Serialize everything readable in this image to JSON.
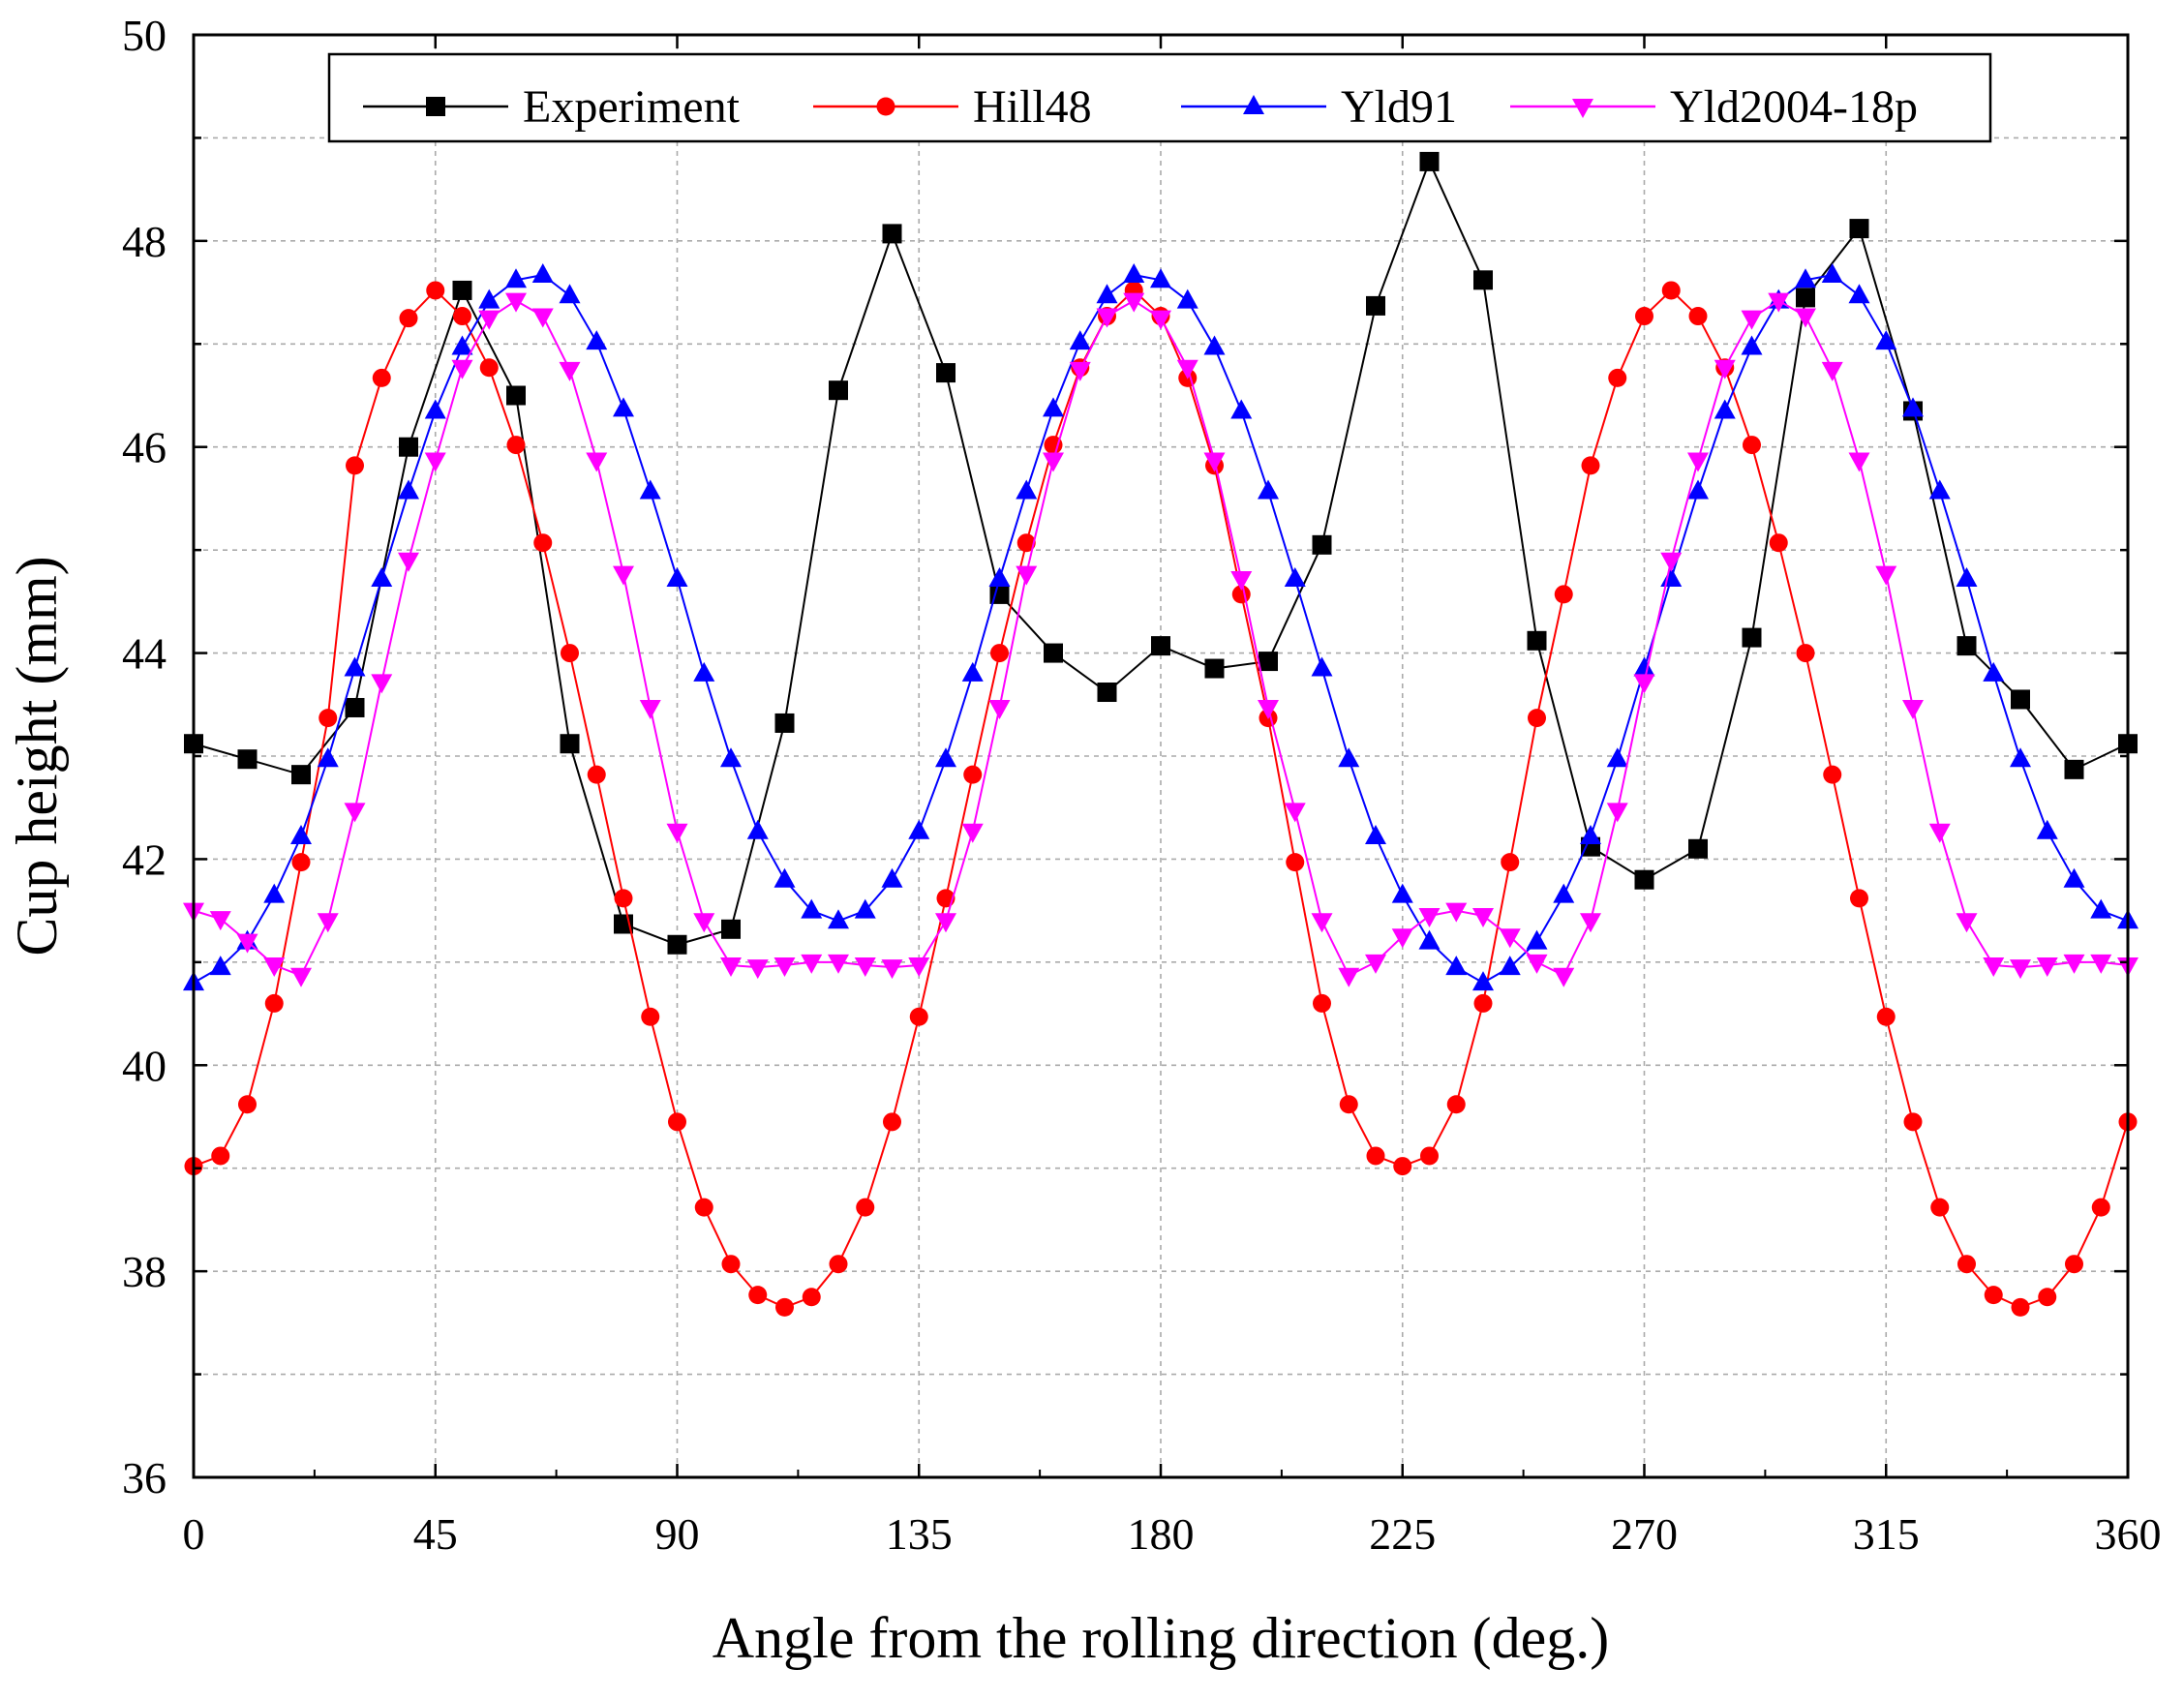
{
  "chart_data": {
    "type": "line",
    "title": "",
    "xlabel": "Angle from the rolling direction (deg.)",
    "ylabel": "Cup height (mm)",
    "xlim": [
      0,
      360
    ],
    "ylim": [
      36,
      50
    ],
    "xticks": [
      0,
      45,
      90,
      135,
      180,
      225,
      270,
      315,
      360
    ],
    "yticks": [
      36,
      38,
      40,
      42,
      44,
      46,
      48,
      50
    ],
    "grid": true,
    "legend_position": "top",
    "series": [
      {
        "name": "Experiment",
        "color": "#000000",
        "marker": "square",
        "x": [
          0,
          10,
          20,
          30,
          40,
          50,
          60,
          70,
          80,
          90,
          100,
          110,
          120,
          130,
          140,
          150,
          160,
          170,
          180,
          190,
          200,
          210,
          220,
          230,
          240,
          250,
          260,
          270,
          280,
          290,
          300,
          310,
          320,
          330,
          340,
          350,
          360
        ],
        "y": [
          43.12,
          42.97,
          42.82,
          43.47,
          46.0,
          47.52,
          46.5,
          43.12,
          41.37,
          41.17,
          41.32,
          43.32,
          46.55,
          48.07,
          46.72,
          44.57,
          44.0,
          43.62,
          44.07,
          43.85,
          43.92,
          45.05,
          47.37,
          48.77,
          47.62,
          44.12,
          42.12,
          41.8,
          42.1,
          44.15,
          47.45,
          48.12,
          46.35,
          44.07,
          43.55,
          42.87,
          43.12
        ]
      },
      {
        "name": "Hill48",
        "color": "#ff0000",
        "marker": "circle",
        "x": [
          0,
          5,
          10,
          15,
          20,
          25,
          30,
          35,
          40,
          45,
          50,
          55,
          60,
          65,
          70,
          75,
          80,
          85,
          90,
          95,
          100,
          105,
          110,
          115,
          120,
          125,
          130,
          135,
          140,
          145,
          150,
          155,
          160,
          165,
          170,
          175,
          180,
          185,
          190,
          195,
          200,
          205,
          210,
          215,
          220,
          225,
          230,
          235,
          240,
          245,
          250,
          255,
          260,
          265,
          270,
          275,
          280,
          285,
          290,
          295,
          300,
          305,
          310,
          315,
          320,
          325,
          330,
          335,
          340,
          345,
          350,
          355,
          360
        ],
        "y": [
          39.02,
          39.12,
          39.62,
          40.6,
          41.97,
          43.37,
          45.82,
          46.67,
          47.25,
          47.52,
          47.27,
          46.77,
          46.02,
          45.07,
          44.0,
          42.82,
          41.62,
          40.47,
          39.45,
          38.62,
          38.07,
          37.77,
          37.65,
          37.75,
          38.07,
          38.62,
          39.45,
          40.47,
          41.62,
          42.82,
          44.0,
          45.07,
          46.02,
          46.77,
          47.27,
          47.52,
          47.27,
          46.67,
          45.82,
          44.57,
          43.37,
          41.97,
          40.6,
          39.62,
          39.12,
          39.02,
          39.12,
          39.62,
          40.6,
          41.97,
          43.37,
          44.57,
          45.82,
          46.67,
          47.27,
          47.52,
          47.27,
          46.77,
          46.02,
          45.07,
          44.0,
          42.82,
          41.62,
          40.47,
          39.45,
          38.62,
          38.07,
          37.77,
          37.65,
          37.75,
          38.07,
          38.62,
          39.45
        ]
      },
      {
        "name": "Yld91",
        "color": "#0000ff",
        "marker": "triangle-up",
        "x": [
          0,
          5,
          10,
          15,
          20,
          25,
          30,
          35,
          40,
          45,
          50,
          55,
          60,
          65,
          70,
          75,
          80,
          85,
          90,
          95,
          100,
          105,
          110,
          115,
          120,
          125,
          130,
          135,
          140,
          145,
          150,
          155,
          160,
          165,
          170,
          175,
          180,
          185,
          190,
          195,
          200,
          205,
          210,
          215,
          220,
          225,
          230,
          235,
          240,
          245,
          250,
          255,
          260,
          265,
          270,
          275,
          280,
          285,
          290,
          295,
          300,
          305,
          310,
          315,
          320,
          325,
          330,
          335,
          340,
          345,
          350,
          355,
          360
        ],
        "y": [
          40.8,
          40.95,
          41.2,
          41.65,
          42.22,
          42.97,
          43.85,
          44.72,
          45.57,
          46.35,
          46.97,
          47.42,
          47.62,
          47.67,
          47.47,
          47.02,
          46.37,
          45.57,
          44.72,
          43.8,
          42.97,
          42.27,
          41.8,
          41.5,
          41.4,
          41.5,
          41.8,
          42.27,
          42.97,
          43.8,
          44.72,
          45.57,
          46.37,
          47.02,
          47.47,
          47.67,
          47.62,
          47.42,
          46.97,
          46.35,
          45.57,
          44.72,
          43.85,
          42.97,
          42.22,
          41.65,
          41.2,
          40.95,
          40.8,
          40.95,
          41.2,
          41.65,
          42.22,
          42.97,
          43.85,
          44.72,
          45.57,
          46.35,
          46.97,
          47.42,
          47.62,
          47.67,
          47.47,
          47.02,
          46.37,
          45.57,
          44.72,
          43.8,
          42.97,
          42.27,
          41.8,
          41.5,
          41.4
        ]
      },
      {
        "name": "Yld2004-18p",
        "color": "#ff00ff",
        "marker": "triangle-down",
        "x": [
          0,
          5,
          10,
          15,
          20,
          25,
          30,
          35,
          40,
          45,
          50,
          55,
          60,
          65,
          70,
          75,
          80,
          85,
          90,
          95,
          100,
          105,
          110,
          115,
          120,
          125,
          130,
          135,
          140,
          145,
          150,
          155,
          160,
          165,
          170,
          175,
          180,
          185,
          190,
          195,
          200,
          205,
          210,
          215,
          220,
          225,
          230,
          235,
          240,
          245,
          250,
          255,
          260,
          265,
          270,
          275,
          280,
          285,
          290,
          295,
          300,
          305,
          310,
          315,
          320,
          325,
          330,
          335,
          340,
          345,
          350,
          355,
          360
        ],
        "y": [
          41.5,
          41.42,
          41.2,
          40.97,
          40.87,
          41.4,
          42.47,
          43.72,
          44.9,
          45.87,
          46.77,
          47.25,
          47.42,
          47.27,
          46.75,
          45.87,
          44.77,
          43.47,
          42.27,
          41.4,
          40.97,
          40.95,
          40.97,
          41.0,
          41.0,
          40.97,
          40.95,
          40.97,
          41.4,
          42.27,
          43.47,
          44.77,
          45.87,
          46.75,
          47.27,
          47.42,
          47.25,
          46.77,
          45.87,
          44.72,
          43.47,
          42.47,
          41.4,
          40.87,
          41.0,
          41.25,
          41.45,
          41.5,
          41.45,
          41.25,
          41.0,
          40.87,
          41.4,
          42.47,
          43.72,
          44.9,
          45.87,
          46.77,
          47.25,
          47.42,
          47.27,
          46.75,
          45.87,
          44.77,
          43.47,
          42.27,
          41.4,
          40.97,
          40.95,
          40.97,
          41.0,
          41.0,
          40.97
        ]
      }
    ]
  }
}
